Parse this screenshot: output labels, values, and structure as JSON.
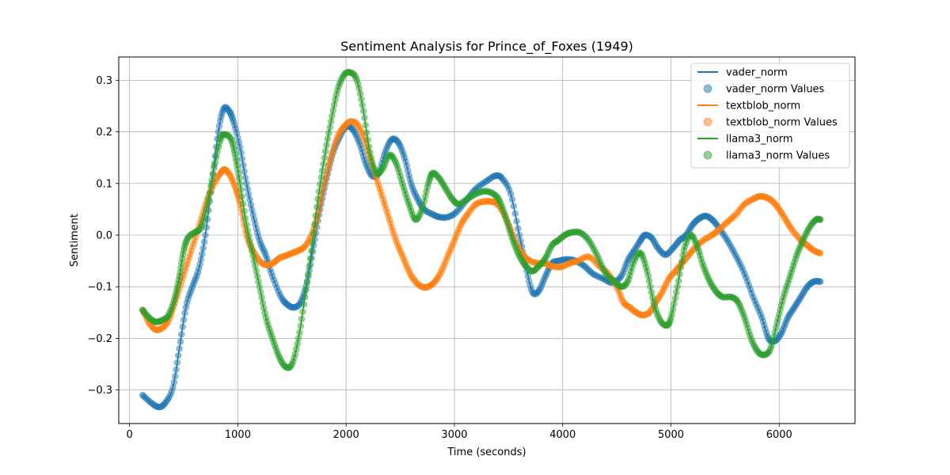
{
  "chart_data": {
    "type": "line",
    "title": "Sentiment Analysis for Prince_of_Foxes (1949)",
    "xlabel": "Time (seconds)",
    "ylabel": "Sentiment",
    "xlim": [
      -100,
      6700
    ],
    "ylim": [
      -0.365,
      0.345
    ],
    "xticks": [
      0,
      1000,
      2000,
      3000,
      4000,
      5000,
      6000
    ],
    "yticks": [
      -0.3,
      -0.2,
      -0.1,
      0.0,
      0.1,
      0.2,
      0.3
    ],
    "ytick_labels": [
      "−0.3",
      "−0.2",
      "−0.1",
      "0.0",
      "0.1",
      "0.2",
      "0.3"
    ],
    "grid": true,
    "legend_position": "top-right",
    "legend": [
      {
        "label": "vader_norm",
        "kind": "line",
        "color": "#1f77b4"
      },
      {
        "label": "vader_norm Values",
        "kind": "marker",
        "color": "#1f77b4"
      },
      {
        "label": "textblob_norm",
        "kind": "line",
        "color": "#ff7f0e"
      },
      {
        "label": "textblob_norm Values",
        "kind": "marker",
        "color": "#ff7f0e"
      },
      {
        "label": "llama3_norm",
        "kind": "line",
        "color": "#2ca02c"
      },
      {
        "label": "llama3_norm Values",
        "kind": "marker",
        "color": "#2ca02c"
      }
    ],
    "series": [
      {
        "name": "vader_norm",
        "color": "#1f77b4",
        "points": [
          [
            120,
            -0.31
          ],
          [
            200,
            -0.325
          ],
          [
            270,
            -0.333
          ],
          [
            330,
            -0.325
          ],
          [
            400,
            -0.295
          ],
          [
            460,
            -0.22
          ],
          [
            520,
            -0.14
          ],
          [
            580,
            -0.1
          ],
          [
            640,
            -0.065
          ],
          [
            700,
            0.0
          ],
          [
            760,
            0.1
          ],
          [
            820,
            0.2
          ],
          [
            870,
            0.245
          ],
          [
            920,
            0.24
          ],
          [
            960,
            0.22
          ],
          [
            1020,
            0.17
          ],
          [
            1080,
            0.1
          ],
          [
            1140,
            0.04
          ],
          [
            1200,
            -0.01
          ],
          [
            1260,
            -0.04
          ],
          [
            1320,
            -0.08
          ],
          [
            1400,
            -0.12
          ],
          [
            1460,
            -0.135
          ],
          [
            1520,
            -0.14
          ],
          [
            1580,
            -0.13
          ],
          [
            1640,
            -0.09
          ],
          [
            1700,
            -0.02
          ],
          [
            1760,
            0.05
          ],
          [
            1820,
            0.11
          ],
          [
            1880,
            0.16
          ],
          [
            1940,
            0.19
          ],
          [
            2000,
            0.21
          ],
          [
            2060,
            0.205
          ],
          [
            2120,
            0.18
          ],
          [
            2180,
            0.14
          ],
          [
            2240,
            0.115
          ],
          [
            2300,
            0.12
          ],
          [
            2360,
            0.16
          ],
          [
            2420,
            0.185
          ],
          [
            2480,
            0.18
          ],
          [
            2540,
            0.15
          ],
          [
            2600,
            0.1
          ],
          [
            2660,
            0.07
          ],
          [
            2720,
            0.05
          ],
          [
            2800,
            0.04
          ],
          [
            2860,
            0.035
          ],
          [
            2940,
            0.035
          ],
          [
            3020,
            0.045
          ],
          [
            3120,
            0.07
          ],
          [
            3200,
            0.09
          ],
          [
            3300,
            0.105
          ],
          [
            3380,
            0.115
          ],
          [
            3440,
            0.11
          ],
          [
            3520,
            0.08
          ],
          [
            3600,
            0.0
          ],
          [
            3660,
            -0.06
          ],
          [
            3720,
            -0.11
          ],
          [
            3780,
            -0.108
          ],
          [
            3840,
            -0.08
          ],
          [
            3900,
            -0.055
          ],
          [
            3960,
            -0.05
          ],
          [
            4040,
            -0.047
          ],
          [
            4120,
            -0.05
          ],
          [
            4200,
            -0.06
          ],
          [
            4280,
            -0.075
          ],
          [
            4380,
            -0.085
          ],
          [
            4460,
            -0.092
          ],
          [
            4540,
            -0.08
          ],
          [
            4600,
            -0.05
          ],
          [
            4660,
            -0.03
          ],
          [
            4720,
            -0.01
          ],
          [
            4760,
            0.0
          ],
          [
            4820,
            -0.005
          ],
          [
            4880,
            -0.025
          ],
          [
            4950,
            -0.038
          ],
          [
            5020,
            -0.025
          ],
          [
            5080,
            -0.01
          ],
          [
            5140,
            0.0
          ],
          [
            5200,
            0.02
          ],
          [
            5260,
            0.032
          ],
          [
            5320,
            0.037
          ],
          [
            5380,
            0.03
          ],
          [
            5440,
            0.015
          ],
          [
            5520,
            -0.01
          ],
          [
            5600,
            -0.04
          ],
          [
            5680,
            -0.075
          ],
          [
            5760,
            -0.12
          ],
          [
            5840,
            -0.16
          ],
          [
            5900,
            -0.2
          ],
          [
            5960,
            -0.205
          ],
          [
            6020,
            -0.19
          ],
          [
            6080,
            -0.16
          ],
          [
            6140,
            -0.14
          ],
          [
            6200,
            -0.12
          ],
          [
            6260,
            -0.1
          ],
          [
            6320,
            -0.09
          ],
          [
            6380,
            -0.09
          ]
        ]
      },
      {
        "name": "textblob_norm",
        "color": "#ff7f0e",
        "points": [
          [
            120,
            -0.145
          ],
          [
            180,
            -0.17
          ],
          [
            240,
            -0.183
          ],
          [
            300,
            -0.18
          ],
          [
            360,
            -0.165
          ],
          [
            420,
            -0.13
          ],
          [
            480,
            -0.09
          ],
          [
            540,
            -0.05
          ],
          [
            600,
            -0.01
          ],
          [
            660,
            0.03
          ],
          [
            720,
            0.07
          ],
          [
            780,
            0.1
          ],
          [
            840,
            0.12
          ],
          [
            880,
            0.127
          ],
          [
            930,
            0.115
          ],
          [
            980,
            0.09
          ],
          [
            1020,
            0.06
          ],
          [
            1080,
            0.0
          ],
          [
            1140,
            -0.03
          ],
          [
            1200,
            -0.05
          ],
          [
            1260,
            -0.058
          ],
          [
            1320,
            -0.055
          ],
          [
            1380,
            -0.045
          ],
          [
            1440,
            -0.04
          ],
          [
            1500,
            -0.035
          ],
          [
            1560,
            -0.03
          ],
          [
            1620,
            -0.022
          ],
          [
            1680,
            0.0
          ],
          [
            1740,
            0.04
          ],
          [
            1800,
            0.1
          ],
          [
            1860,
            0.15
          ],
          [
            1920,
            0.19
          ],
          [
            1980,
            0.21
          ],
          [
            2040,
            0.22
          ],
          [
            2100,
            0.215
          ],
          [
            2160,
            0.19
          ],
          [
            2220,
            0.15
          ],
          [
            2280,
            0.11
          ],
          [
            2340,
            0.07
          ],
          [
            2400,
            0.03
          ],
          [
            2460,
            -0.01
          ],
          [
            2520,
            -0.04
          ],
          [
            2580,
            -0.07
          ],
          [
            2640,
            -0.09
          ],
          [
            2700,
            -0.1
          ],
          [
            2760,
            -0.1
          ],
          [
            2820,
            -0.09
          ],
          [
            2880,
            -0.07
          ],
          [
            2940,
            -0.04
          ],
          [
            3000,
            -0.01
          ],
          [
            3060,
            0.02
          ],
          [
            3120,
            0.04
          ],
          [
            3200,
            0.06
          ],
          [
            3280,
            0.065
          ],
          [
            3340,
            0.065
          ],
          [
            3400,
            0.06
          ],
          [
            3460,
            0.04
          ],
          [
            3520,
            0.01
          ],
          [
            3580,
            -0.02
          ],
          [
            3640,
            -0.04
          ],
          [
            3700,
            -0.05
          ],
          [
            3780,
            -0.055
          ],
          [
            3840,
            -0.055
          ],
          [
            3900,
            -0.06
          ],
          [
            3980,
            -0.062
          ],
          [
            4060,
            -0.055
          ],
          [
            4140,
            -0.05
          ],
          [
            4240,
            -0.042
          ],
          [
            4340,
            -0.06
          ],
          [
            4420,
            -0.075
          ],
          [
            4500,
            -0.1
          ],
          [
            4560,
            -0.13
          ],
          [
            4620,
            -0.14
          ],
          [
            4680,
            -0.15
          ],
          [
            4740,
            -0.155
          ],
          [
            4800,
            -0.15
          ],
          [
            4860,
            -0.13
          ],
          [
            4920,
            -0.11
          ],
          [
            4980,
            -0.085
          ],
          [
            5040,
            -0.07
          ],
          [
            5100,
            -0.055
          ],
          [
            5160,
            -0.04
          ],
          [
            5220,
            -0.025
          ],
          [
            5300,
            -0.01
          ],
          [
            5380,
            0.0
          ],
          [
            5440,
            0.01
          ],
          [
            5520,
            0.025
          ],
          [
            5600,
            0.04
          ],
          [
            5680,
            0.06
          ],
          [
            5760,
            0.07
          ],
          [
            5820,
            0.075
          ],
          [
            5880,
            0.073
          ],
          [
            5940,
            0.065
          ],
          [
            6000,
            0.05
          ],
          [
            6060,
            0.03
          ],
          [
            6120,
            0.01
          ],
          [
            6200,
            -0.01
          ],
          [
            6260,
            -0.02
          ],
          [
            6320,
            -0.03
          ],
          [
            6380,
            -0.035
          ]
        ]
      },
      {
        "name": "llama3_norm",
        "color": "#2ca02c",
        "points": [
          [
            120,
            -0.145
          ],
          [
            180,
            -0.16
          ],
          [
            240,
            -0.168
          ],
          [
            300,
            -0.165
          ],
          [
            360,
            -0.155
          ],
          [
            420,
            -0.12
          ],
          [
            460,
            -0.08
          ],
          [
            500,
            -0.03
          ],
          [
            540,
            -0.005
          ],
          [
            600,
            0.005
          ],
          [
            660,
            0.015
          ],
          [
            720,
            0.06
          ],
          [
            780,
            0.13
          ],
          [
            840,
            0.185
          ],
          [
            880,
            0.195
          ],
          [
            940,
            0.185
          ],
          [
            980,
            0.15
          ],
          [
            1020,
            0.1
          ],
          [
            1080,
            0.02
          ],
          [
            1140,
            -0.04
          ],
          [
            1200,
            -0.1
          ],
          [
            1260,
            -0.16
          ],
          [
            1320,
            -0.2
          ],
          [
            1380,
            -0.235
          ],
          [
            1440,
            -0.255
          ],
          [
            1500,
            -0.25
          ],
          [
            1560,
            -0.2
          ],
          [
            1620,
            -0.12
          ],
          [
            1680,
            -0.03
          ],
          [
            1740,
            0.07
          ],
          [
            1800,
            0.15
          ],
          [
            1860,
            0.22
          ],
          [
            1920,
            0.28
          ],
          [
            1980,
            0.31
          ],
          [
            2040,
            0.315
          ],
          [
            2100,
            0.3
          ],
          [
            2160,
            0.24
          ],
          [
            2220,
            0.16
          ],
          [
            2280,
            0.12
          ],
          [
            2340,
            0.13
          ],
          [
            2400,
            0.155
          ],
          [
            2460,
            0.14
          ],
          [
            2520,
            0.1
          ],
          [
            2580,
            0.06
          ],
          [
            2640,
            0.03
          ],
          [
            2700,
            0.05
          ],
          [
            2760,
            0.1
          ],
          [
            2800,
            0.12
          ],
          [
            2860,
            0.11
          ],
          [
            2920,
            0.09
          ],
          [
            2980,
            0.07
          ],
          [
            3040,
            0.06
          ],
          [
            3120,
            0.07
          ],
          [
            3200,
            0.08
          ],
          [
            3280,
            0.085
          ],
          [
            3360,
            0.08
          ],
          [
            3420,
            0.065
          ],
          [
            3480,
            0.03
          ],
          [
            3540,
            -0.01
          ],
          [
            3600,
            -0.04
          ],
          [
            3660,
            -0.06
          ],
          [
            3720,
            -0.07
          ],
          [
            3780,
            -0.06
          ],
          [
            3840,
            -0.045
          ],
          [
            3900,
            -0.02
          ],
          [
            3960,
            -0.01
          ],
          [
            4020,
            0.0
          ],
          [
            4080,
            0.005
          ],
          [
            4160,
            0.005
          ],
          [
            4240,
            -0.01
          ],
          [
            4320,
            -0.04
          ],
          [
            4400,
            -0.075
          ],
          [
            4480,
            -0.09
          ],
          [
            4540,
            -0.1
          ],
          [
            4600,
            -0.09
          ],
          [
            4660,
            -0.05
          ],
          [
            4720,
            -0.035
          ],
          [
            4780,
            -0.07
          ],
          [
            4840,
            -0.13
          ],
          [
            4900,
            -0.165
          ],
          [
            4960,
            -0.175
          ],
          [
            5000,
            -0.16
          ],
          [
            5060,
            -0.1
          ],
          [
            5120,
            -0.03
          ],
          [
            5180,
            0.0
          ],
          [
            5240,
            -0.02
          ],
          [
            5300,
            -0.06
          ],
          [
            5360,
            -0.09
          ],
          [
            5420,
            -0.11
          ],
          [
            5480,
            -0.12
          ],
          [
            5560,
            -0.12
          ],
          [
            5620,
            -0.13
          ],
          [
            5680,
            -0.16
          ],
          [
            5740,
            -0.2
          ],
          [
            5800,
            -0.225
          ],
          [
            5860,
            -0.232
          ],
          [
            5920,
            -0.22
          ],
          [
            5980,
            -0.17
          ],
          [
            6040,
            -0.12
          ],
          [
            6100,
            -0.08
          ],
          [
            6160,
            -0.04
          ],
          [
            6220,
            -0.01
          ],
          [
            6280,
            0.015
          ],
          [
            6340,
            0.03
          ],
          [
            6380,
            0.03
          ]
        ]
      }
    ]
  }
}
